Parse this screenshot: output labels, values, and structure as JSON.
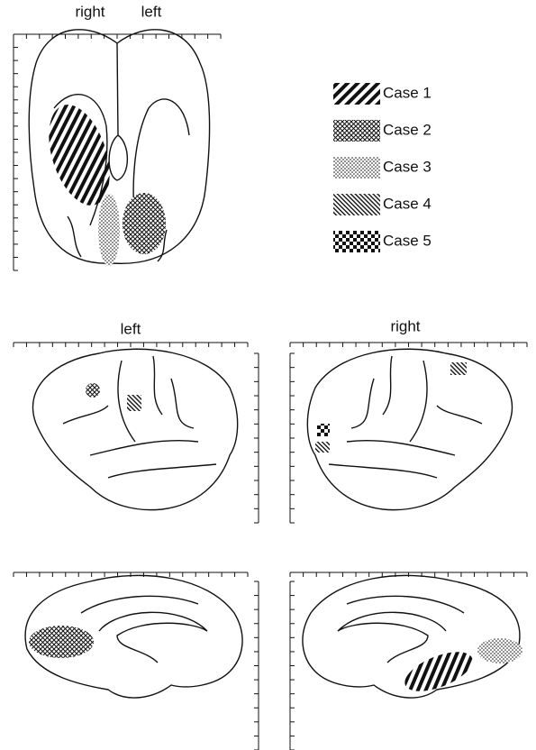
{
  "top_view": {
    "labels": [
      "right",
      "left"
    ]
  },
  "legend": [
    "Case 1",
    "Case 2",
    "Case 3",
    "Case 4",
    "Case 5"
  ],
  "lateral_views": {
    "labels": [
      "left",
      "right"
    ]
  }
}
